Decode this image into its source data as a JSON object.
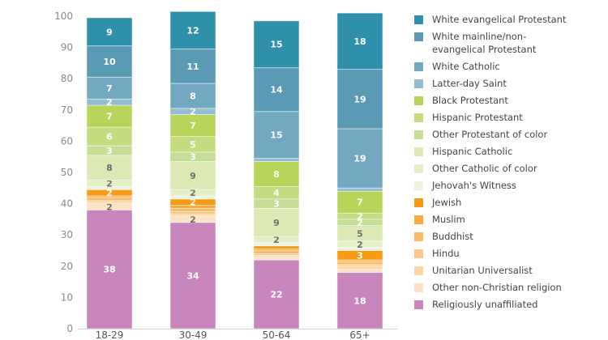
{
  "chart_data": {
    "type": "bar",
    "stacked": true,
    "title": "",
    "xlabel": "",
    "ylabel": "",
    "ylim": [
      0,
      100
    ],
    "yticks": [
      0,
      10,
      20,
      30,
      40,
      50,
      60,
      70,
      80,
      90,
      100
    ],
    "grid": false,
    "legend_position": "right",
    "categories": [
      "18-29",
      "30-49",
      "50-64",
      "65+"
    ],
    "series": [
      {
        "name": "Religiously unaffiliated",
        "color": "#c986bd",
        "label_color": "#ffffff",
        "values": [
          38,
          34,
          22,
          18
        ],
        "labels": [
          "38",
          "34",
          "22",
          "18"
        ]
      },
      {
        "name": "Other non-Christian religion",
        "color": "#fde3c4",
        "label_color": "#6f6f6f",
        "values": [
          2,
          2,
          1,
          1
        ],
        "labels": [
          "2",
          "2",
          "",
          ""
        ]
      },
      {
        "name": "Unitarian Universalist",
        "color": "#fdd6a6",
        "label_color": "#6f6f6f",
        "values": [
          0.5,
          0.5,
          0.5,
          1
        ],
        "labels": [
          "",
          "",
          "",
          ""
        ]
      },
      {
        "name": "Hindu",
        "color": "#fcc98a",
        "label_color": "#6f6f6f",
        "values": [
          0.5,
          1,
          0.5,
          0.5
        ],
        "labels": [
          "",
          "",
          "",
          ""
        ]
      },
      {
        "name": "Buddhist",
        "color": "#fbbb6a",
        "label_color": "#6f6f6f",
        "values": [
          1,
          1,
          1,
          1
        ],
        "labels": [
          "",
          "",
          "",
          ""
        ]
      },
      {
        "name": "Muslim",
        "color": "#f9ab40",
        "label_color": "#6f6f6f",
        "values": [
          0.5,
          1,
          0.5,
          0.5
        ],
        "labels": [
          "",
          "",
          "",
          ""
        ]
      },
      {
        "name": "Jewish",
        "color": "#f79a14",
        "label_color": "#ffffff",
        "values": [
          2,
          2,
          1,
          3
        ],
        "labels": [
          "2",
          "2",
          "",
          "3"
        ]
      },
      {
        "name": "Jehovah's Witness",
        "color": "#eef4dc",
        "label_color": "#6f6f6f",
        "values": [
          1,
          1,
          1,
          1
        ],
        "labels": [
          "",
          "",
          "",
          ""
        ]
      },
      {
        "name": "Other Catholic of color",
        "color": "#e3efc6",
        "label_color": "#6f6f6f",
        "values": [
          2,
          2,
          2,
          2
        ],
        "labels": [
          "2",
          "2",
          "2",
          "2"
        ]
      },
      {
        "name": "Hispanic Catholic",
        "color": "#dce9b4",
        "label_color": "#6f6f6f",
        "values": [
          8,
          9,
          9,
          5
        ],
        "labels": [
          "8",
          "9",
          "9",
          "5"
        ]
      },
      {
        "name": "Other Protestant of color",
        "color": "#c5dd94",
        "label_color": "#ffffff",
        "values": [
          3,
          3,
          3,
          2
        ],
        "labels": [
          "3",
          "3",
          "3",
          "2"
        ]
      },
      {
        "name": "Hispanic Protestant",
        "color": "#c4db80",
        "label_color": "#ffffff",
        "values": [
          6,
          5,
          4,
          2
        ],
        "labels": [
          "6",
          "5",
          "4",
          "2"
        ]
      },
      {
        "name": "Black Protestant",
        "color": "#b8d45a",
        "label_color": "#ffffff",
        "values": [
          7,
          7,
          8,
          7
        ],
        "labels": [
          "7",
          "7",
          "8",
          "7"
        ]
      },
      {
        "name": "Latter-day Saint",
        "color": "#93bdd0",
        "label_color": "#ffffff",
        "values": [
          2,
          2,
          1,
          1
        ],
        "labels": [
          "2",
          "2",
          "",
          ""
        ]
      },
      {
        "name": "White Catholic",
        "color": "#73a9c0",
        "label_color": "#ffffff",
        "values": [
          7,
          8,
          15,
          19
        ],
        "labels": [
          "7",
          "8",
          "15",
          "19"
        ]
      },
      {
        "name": "White mainline/non-evangelical Protestant",
        "color": "#5a9ab5",
        "label_color": "#ffffff",
        "values": [
          10,
          11,
          14,
          19
        ],
        "labels": [
          "10",
          "11",
          "14",
          "19"
        ]
      },
      {
        "name": "White evangelical Protestant",
        "color": "#2e90ab",
        "label_color": "#ffffff",
        "values": [
          9,
          12,
          15,
          18
        ],
        "labels": [
          "9",
          "12",
          "15",
          "18"
        ]
      }
    ]
  },
  "legend": [
    {
      "label": "White evangelical Protestant",
      "color": "#2e90ab"
    },
    {
      "label": "White mainline/non-evangelical Protestant",
      "color": "#5a9ab5"
    },
    {
      "label": "White Catholic",
      "color": "#73a9c0"
    },
    {
      "label": "Latter-day Saint",
      "color": "#93bdd0"
    },
    {
      "label": "Black Protestant",
      "color": "#b8d45a"
    },
    {
      "label": "Hispanic Protestant",
      "color": "#c4db80"
    },
    {
      "label": "Other Protestant of color",
      "color": "#c5dd94"
    },
    {
      "label": "Hispanic Catholic",
      "color": "#dce9b4"
    },
    {
      "label": "Other Catholic of color",
      "color": "#e3efc6"
    },
    {
      "label": "Jehovah's Witness",
      "color": "#eef4dc"
    },
    {
      "label": "Jewish",
      "color": "#f79a14"
    },
    {
      "label": "Muslim",
      "color": "#f9ab40"
    },
    {
      "label": "Buddhist",
      "color": "#fbbb6a"
    },
    {
      "label": "Hindu",
      "color": "#fcc98a"
    },
    {
      "label": "Unitarian Universalist",
      "color": "#fdd6a6"
    },
    {
      "label": "Other non-Christian religion",
      "color": "#fde3c4"
    },
    {
      "label": "Religiously unaffiliated",
      "color": "#c986bd"
    }
  ]
}
